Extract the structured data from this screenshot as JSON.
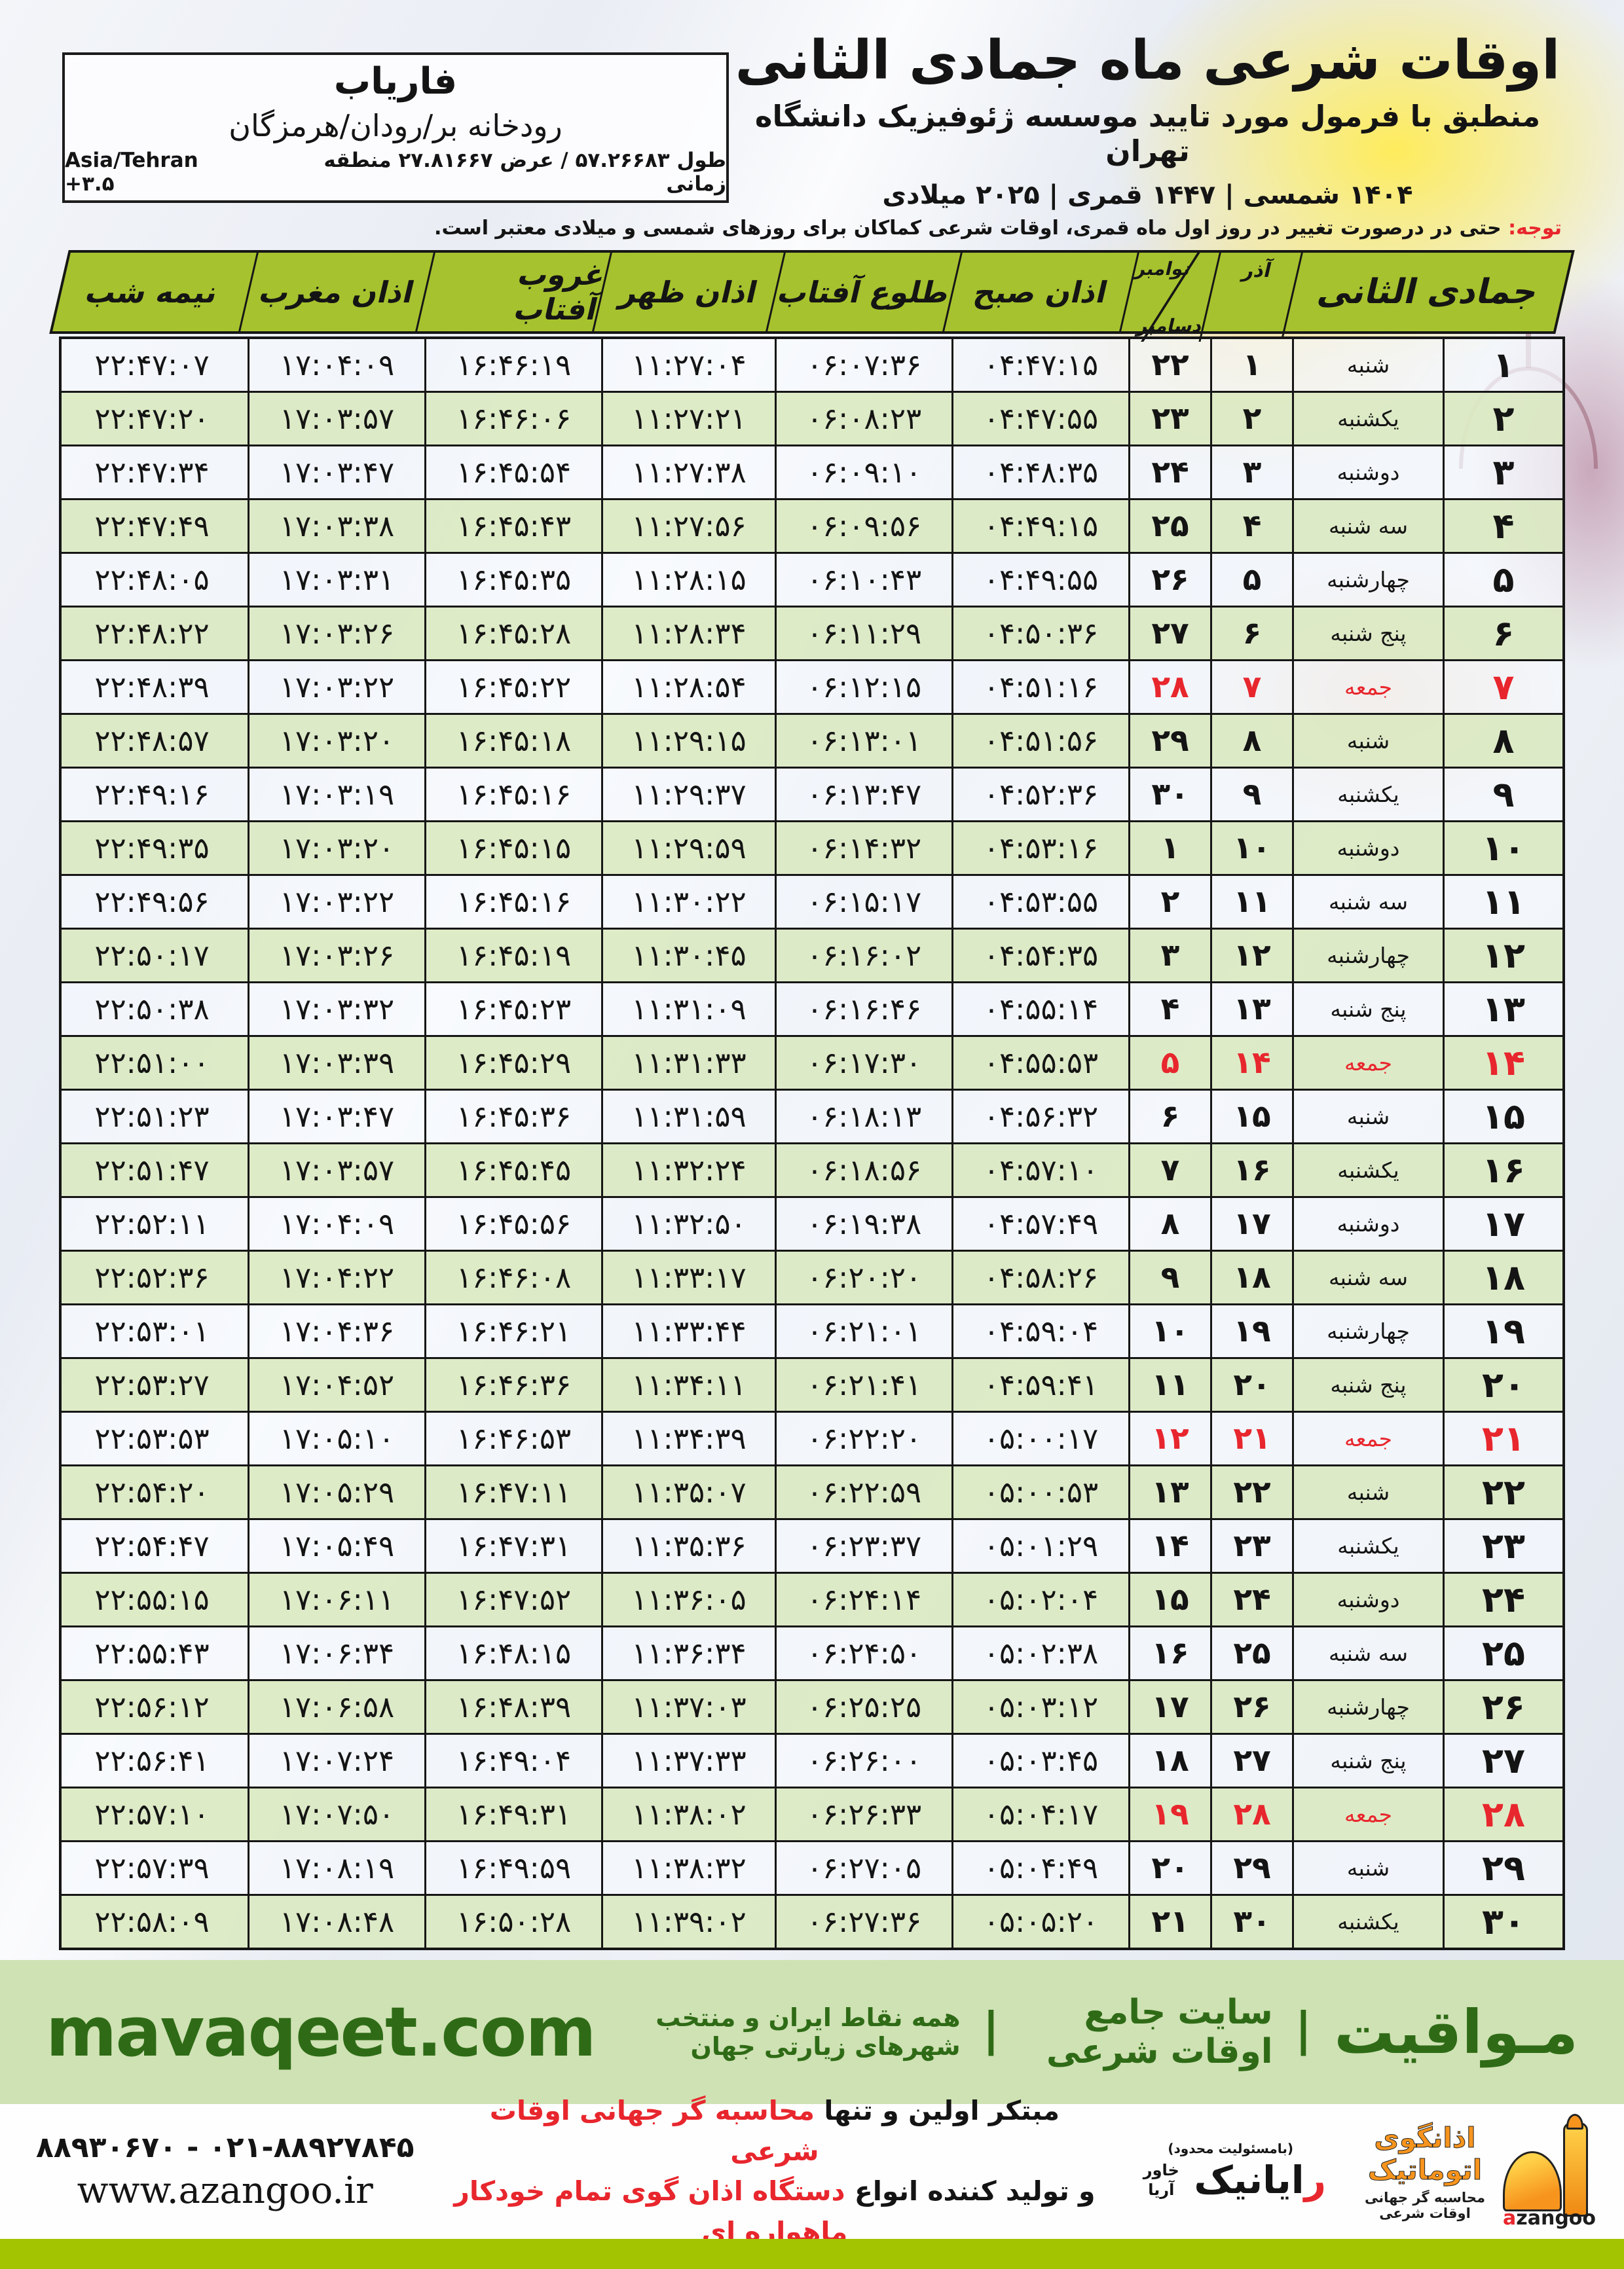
{
  "header": {
    "title": "اوقات شرعی ماه جمادی الثانی",
    "subtitle": "منطبق با فرمول مورد تایید موسسه ژئوفیزیک دانشگاه تهران",
    "dates": "۱۴۰۴ شمسی | ۱۴۴۷ قمری | ۲۰۲۵ میلادی"
  },
  "location": {
    "city": "فاریاب",
    "region": "رودخانه بر/رودان/هرمزگان",
    "coords_fa": "طول ۵۷.۲۶۶۸۳ / عرض ۲۷.۸۱۶۶۷ منطقه زمانی",
    "timezone": "Asia/Tehran +۳.۵"
  },
  "notice": {
    "label": "توجه:",
    "text": " حتی در درصورت تغییر در روز اول ماه قمری، اوقات شرعی کماکان برای روزهای شمسی و میلادی معتبر است."
  },
  "table": {
    "headers": {
      "month": "جمادی الثانی",
      "azar": "آذر",
      "november": "نوامبر",
      "december": "دسامبر",
      "sobh": "اذان صبح",
      "tolu": "طلوع آفتاب",
      "zohr": "اذان ظهر",
      "ghorub": "غروب آفتاب",
      "maghreb": "اذان مغرب",
      "nimeshab": "نیمه شب"
    },
    "rows": [
      {
        "day": "۱",
        "weekday": "شنبه",
        "azar": "۱",
        "novdec": "۲۲",
        "sobh": "۰۴:۴۷:۱۵",
        "tolu": "۰۶:۰۷:۳۶",
        "zohr": "۱۱:۲۷:۰۴",
        "ghorub": "۱۶:۴۶:۱۹",
        "maghreb": "۱۷:۰۴:۰۹",
        "nimeshab": "۲۲:۴۷:۰۷",
        "friday": false
      },
      {
        "day": "۲",
        "weekday": "یکشنبه",
        "azar": "۲",
        "novdec": "۲۳",
        "sobh": "۰۴:۴۷:۵۵",
        "tolu": "۰۶:۰۸:۲۳",
        "zohr": "۱۱:۲۷:۲۱",
        "ghorub": "۱۶:۴۶:۰۶",
        "maghreb": "۱۷:۰۳:۵۷",
        "nimeshab": "۲۲:۴۷:۲۰",
        "friday": false
      },
      {
        "day": "۳",
        "weekday": "دوشنبه",
        "azar": "۳",
        "novdec": "۲۴",
        "sobh": "۰۴:۴۸:۳۵",
        "tolu": "۰۶:۰۹:۱۰",
        "zohr": "۱۱:۲۷:۳۸",
        "ghorub": "۱۶:۴۵:۵۴",
        "maghreb": "۱۷:۰۳:۴۷",
        "nimeshab": "۲۲:۴۷:۳۴",
        "friday": false
      },
      {
        "day": "۴",
        "weekday": "سه شنبه",
        "azar": "۴",
        "novdec": "۲۵",
        "sobh": "۰۴:۴۹:۱۵",
        "tolu": "۰۶:۰۹:۵۶",
        "zohr": "۱۱:۲۷:۵۶",
        "ghorub": "۱۶:۴۵:۴۳",
        "maghreb": "۱۷:۰۳:۳۸",
        "nimeshab": "۲۲:۴۷:۴۹",
        "friday": false
      },
      {
        "day": "۵",
        "weekday": "چهارشنبه",
        "azar": "۵",
        "novdec": "۲۶",
        "sobh": "۰۴:۴۹:۵۵",
        "tolu": "۰۶:۱۰:۴۳",
        "zohr": "۱۱:۲۸:۱۵",
        "ghorub": "۱۶:۴۵:۳۵",
        "maghreb": "۱۷:۰۳:۳۱",
        "nimeshab": "۲۲:۴۸:۰۵",
        "friday": false
      },
      {
        "day": "۶",
        "weekday": "پنج شنبه",
        "azar": "۶",
        "novdec": "۲۷",
        "sobh": "۰۴:۵۰:۳۶",
        "tolu": "۰۶:۱۱:۲۹",
        "zohr": "۱۱:۲۸:۳۴",
        "ghorub": "۱۶:۴۵:۲۸",
        "maghreb": "۱۷:۰۳:۲۶",
        "nimeshab": "۲۲:۴۸:۲۲",
        "friday": false
      },
      {
        "day": "۷",
        "weekday": "جمعه",
        "azar": "۷",
        "novdec": "۲۸",
        "sobh": "۰۴:۵۱:۱۶",
        "tolu": "۰۶:۱۲:۱۵",
        "zohr": "۱۱:۲۸:۵۴",
        "ghorub": "۱۶:۴۵:۲۲",
        "maghreb": "۱۷:۰۳:۲۲",
        "nimeshab": "۲۲:۴۸:۳۹",
        "friday": true
      },
      {
        "day": "۸",
        "weekday": "شنبه",
        "azar": "۸",
        "novdec": "۲۹",
        "sobh": "۰۴:۵۱:۵۶",
        "tolu": "۰۶:۱۳:۰۱",
        "zohr": "۱۱:۲۹:۱۵",
        "ghorub": "۱۶:۴۵:۱۸",
        "maghreb": "۱۷:۰۳:۲۰",
        "nimeshab": "۲۲:۴۸:۵۷",
        "friday": false
      },
      {
        "day": "۹",
        "weekday": "یکشنبه",
        "azar": "۹",
        "novdec": "۳۰",
        "sobh": "۰۴:۵۲:۳۶",
        "tolu": "۰۶:۱۳:۴۷",
        "zohr": "۱۱:۲۹:۳۷",
        "ghorub": "۱۶:۴۵:۱۶",
        "maghreb": "۱۷:۰۳:۱۹",
        "nimeshab": "۲۲:۴۹:۱۶",
        "friday": false
      },
      {
        "day": "۱۰",
        "weekday": "دوشنبه",
        "azar": "۱۰",
        "novdec": "۱",
        "sobh": "۰۴:۵۳:۱۶",
        "tolu": "۰۶:۱۴:۳۲",
        "zohr": "۱۱:۲۹:۵۹",
        "ghorub": "۱۶:۴۵:۱۵",
        "maghreb": "۱۷:۰۳:۲۰",
        "nimeshab": "۲۲:۴۹:۳۵",
        "friday": false
      },
      {
        "day": "۱۱",
        "weekday": "سه شنبه",
        "azar": "۱۱",
        "novdec": "۲",
        "sobh": "۰۴:۵۳:۵۵",
        "tolu": "۰۶:۱۵:۱۷",
        "zohr": "۱۱:۳۰:۲۲",
        "ghorub": "۱۶:۴۵:۱۶",
        "maghreb": "۱۷:۰۳:۲۲",
        "nimeshab": "۲۲:۴۹:۵۶",
        "friday": false
      },
      {
        "day": "۱۲",
        "weekday": "چهارشنبه",
        "azar": "۱۲",
        "novdec": "۳",
        "sobh": "۰۴:۵۴:۳۵",
        "tolu": "۰۶:۱۶:۰۲",
        "zohr": "۱۱:۳۰:۴۵",
        "ghorub": "۱۶:۴۵:۱۹",
        "maghreb": "۱۷:۰۳:۲۶",
        "nimeshab": "۲۲:۵۰:۱۷",
        "friday": false
      },
      {
        "day": "۱۳",
        "weekday": "پنج شنبه",
        "azar": "۱۳",
        "novdec": "۴",
        "sobh": "۰۴:۵۵:۱۴",
        "tolu": "۰۶:۱۶:۴۶",
        "zohr": "۱۱:۳۱:۰۹",
        "ghorub": "۱۶:۴۵:۲۳",
        "maghreb": "۱۷:۰۳:۳۲",
        "nimeshab": "۲۲:۵۰:۳۸",
        "friday": false
      },
      {
        "day": "۱۴",
        "weekday": "جمعه",
        "azar": "۱۴",
        "novdec": "۵",
        "sobh": "۰۴:۵۵:۵۳",
        "tolu": "۰۶:۱۷:۳۰",
        "zohr": "۱۱:۳۱:۳۳",
        "ghorub": "۱۶:۴۵:۲۹",
        "maghreb": "۱۷:۰۳:۳۹",
        "nimeshab": "۲۲:۵۱:۰۰",
        "friday": true
      },
      {
        "day": "۱۵",
        "weekday": "شنبه",
        "azar": "۱۵",
        "novdec": "۶",
        "sobh": "۰۴:۵۶:۳۲",
        "tolu": "۰۶:۱۸:۱۳",
        "zohr": "۱۱:۳۱:۵۹",
        "ghorub": "۱۶:۴۵:۳۶",
        "maghreb": "۱۷:۰۳:۴۷",
        "nimeshab": "۲۲:۵۱:۲۳",
        "friday": false
      },
      {
        "day": "۱۶",
        "weekday": "یکشنبه",
        "azar": "۱۶",
        "novdec": "۷",
        "sobh": "۰۴:۵۷:۱۰",
        "tolu": "۰۶:۱۸:۵۶",
        "zohr": "۱۱:۳۲:۲۴",
        "ghorub": "۱۶:۴۵:۴۵",
        "maghreb": "۱۷:۰۳:۵۷",
        "nimeshab": "۲۲:۵۱:۴۷",
        "friday": false
      },
      {
        "day": "۱۷",
        "weekday": "دوشنبه",
        "azar": "۱۷",
        "novdec": "۸",
        "sobh": "۰۴:۵۷:۴۹",
        "tolu": "۰۶:۱۹:۳۸",
        "zohr": "۱۱:۳۲:۵۰",
        "ghorub": "۱۶:۴۵:۵۶",
        "maghreb": "۱۷:۰۴:۰۹",
        "nimeshab": "۲۲:۵۲:۱۱",
        "friday": false
      },
      {
        "day": "۱۸",
        "weekday": "سه شنبه",
        "azar": "۱۸",
        "novdec": "۹",
        "sobh": "۰۴:۵۸:۲۶",
        "tolu": "۰۶:۲۰:۲۰",
        "zohr": "۱۱:۳۳:۱۷",
        "ghorub": "۱۶:۴۶:۰۸",
        "maghreb": "۱۷:۰۴:۲۲",
        "nimeshab": "۲۲:۵۲:۳۶",
        "friday": false
      },
      {
        "day": "۱۹",
        "weekday": "چهارشنبه",
        "azar": "۱۹",
        "novdec": "۱۰",
        "sobh": "۰۴:۵۹:۰۴",
        "tolu": "۰۶:۲۱:۰۱",
        "zohr": "۱۱:۳۳:۴۴",
        "ghorub": "۱۶:۴۶:۲۱",
        "maghreb": "۱۷:۰۴:۳۶",
        "nimeshab": "۲۲:۵۳:۰۱",
        "friday": false
      },
      {
        "day": "۲۰",
        "weekday": "پنج شنبه",
        "azar": "۲۰",
        "novdec": "۱۱",
        "sobh": "۰۴:۵۹:۴۱",
        "tolu": "۰۶:۲۱:۴۱",
        "zohr": "۱۱:۳۴:۱۱",
        "ghorub": "۱۶:۴۶:۳۶",
        "maghreb": "۱۷:۰۴:۵۲",
        "nimeshab": "۲۲:۵۳:۲۷",
        "friday": false
      },
      {
        "day": "۲۱",
        "weekday": "جمعه",
        "azar": "۲۱",
        "novdec": "۱۲",
        "sobh": "۰۵:۰۰:۱۷",
        "tolu": "۰۶:۲۲:۲۰",
        "zohr": "۱۱:۳۴:۳۹",
        "ghorub": "۱۶:۴۶:۵۳",
        "maghreb": "۱۷:۰۵:۱۰",
        "nimeshab": "۲۲:۵۳:۵۳",
        "friday": true
      },
      {
        "day": "۲۲",
        "weekday": "شنبه",
        "azar": "۲۲",
        "novdec": "۱۳",
        "sobh": "۰۵:۰۰:۵۳",
        "tolu": "۰۶:۲۲:۵۹",
        "zohr": "۱۱:۳۵:۰۷",
        "ghorub": "۱۶:۴۷:۱۱",
        "maghreb": "۱۷:۰۵:۲۹",
        "nimeshab": "۲۲:۵۴:۲۰",
        "friday": false
      },
      {
        "day": "۲۳",
        "weekday": "یکشنبه",
        "azar": "۲۳",
        "novdec": "۱۴",
        "sobh": "۰۵:۰۱:۲۹",
        "tolu": "۰۶:۲۳:۳۷",
        "zohr": "۱۱:۳۵:۳۶",
        "ghorub": "۱۶:۴۷:۳۱",
        "maghreb": "۱۷:۰۵:۴۹",
        "nimeshab": "۲۲:۵۴:۴۷",
        "friday": false
      },
      {
        "day": "۲۴",
        "weekday": "دوشنبه",
        "azar": "۲۴",
        "novdec": "۱۵",
        "sobh": "۰۵:۰۲:۰۴",
        "tolu": "۰۶:۲۴:۱۴",
        "zohr": "۱۱:۳۶:۰۵",
        "ghorub": "۱۶:۴۷:۵۲",
        "maghreb": "۱۷:۰۶:۱۱",
        "nimeshab": "۲۲:۵۵:۱۵",
        "friday": false
      },
      {
        "day": "۲۵",
        "weekday": "سه شنبه",
        "azar": "۲۵",
        "novdec": "۱۶",
        "sobh": "۰۵:۰۲:۳۸",
        "tolu": "۰۶:۲۴:۵۰",
        "zohr": "۱۱:۳۶:۳۴",
        "ghorub": "۱۶:۴۸:۱۵",
        "maghreb": "۱۷:۰۶:۳۴",
        "nimeshab": "۲۲:۵۵:۴۳",
        "friday": false
      },
      {
        "day": "۲۶",
        "weekday": "چهارشنبه",
        "azar": "۲۶",
        "novdec": "۱۷",
        "sobh": "۰۵:۰۳:۱۲",
        "tolu": "۰۶:۲۵:۲۵",
        "zohr": "۱۱:۳۷:۰۳",
        "ghorub": "۱۶:۴۸:۳۹",
        "maghreb": "۱۷:۰۶:۵۸",
        "nimeshab": "۲۲:۵۶:۱۲",
        "friday": false
      },
      {
        "day": "۲۷",
        "weekday": "پنج شنبه",
        "azar": "۲۷",
        "novdec": "۱۸",
        "sobh": "۰۵:۰۳:۴۵",
        "tolu": "۰۶:۲۶:۰۰",
        "zohr": "۱۱:۳۷:۳۳",
        "ghorub": "۱۶:۴۹:۰۴",
        "maghreb": "۱۷:۰۷:۲۴",
        "nimeshab": "۲۲:۵۶:۴۱",
        "friday": false
      },
      {
        "day": "۲۸",
        "weekday": "جمعه",
        "azar": "۲۸",
        "novdec": "۱۹",
        "sobh": "۰۵:۰۴:۱۷",
        "tolu": "۰۶:۲۶:۳۳",
        "zohr": "۱۱:۳۸:۰۲",
        "ghorub": "۱۶:۴۹:۳۱",
        "maghreb": "۱۷:۰۷:۵۰",
        "nimeshab": "۲۲:۵۷:۱۰",
        "friday": true
      },
      {
        "day": "۲۹",
        "weekday": "شنبه",
        "azar": "۲۹",
        "novdec": "۲۰",
        "sobh": "۰۵:۰۴:۴۹",
        "tolu": "۰۶:۲۷:۰۵",
        "zohr": "۱۱:۳۸:۳۲",
        "ghorub": "۱۶:۴۹:۵۹",
        "maghreb": "۱۷:۰۸:۱۹",
        "nimeshab": "۲۲:۵۷:۳۹",
        "friday": false
      },
      {
        "day": "۳۰",
        "weekday": "یکشنبه",
        "azar": "۳۰",
        "novdec": "۲۱",
        "sobh": "۰۵:۰۵:۲۰",
        "tolu": "۰۶:۲۷:۳۶",
        "zohr": "۱۱:۳۹:۰۲",
        "ghorub": "۱۶:۵۰:۲۸",
        "maghreb": "۱۷:۰۸:۴۸",
        "nimeshab": "۲۲:۵۸:۰۹",
        "friday": false
      }
    ]
  },
  "footer": {
    "mavaqeet": {
      "brand_fa": "مـواقیت",
      "sep": "|",
      "tagline1": "سایت جامع اوقات شرعی",
      "tagline2": "همه نقاط ایران و منتخب شهرهای زیارتی جهان",
      "domain": "mavaqeet.com"
    },
    "producer": {
      "line1_black": "مبتکر اولین و تنها ",
      "line1_red": "محاسبه گر جهانی اوقات شرعی",
      "line2_black": "و تولید کننده انواع ",
      "line2_red": "دستگاه اذان گوی تمام خودکار ماهواره ای"
    },
    "rayanik": {
      "note": "(بامسئولیت محدود)",
      "name_first_letter": "ر",
      "name_rest": "ایانیک",
      "sub": "خاور آریا"
    },
    "azangoo": {
      "name_fa": "اذانگوی اتوماتیک",
      "sub_fa": "محاسبه گر جهانی اوقات شرعی",
      "en_first": "a",
      "en_rest": "zangoo"
    },
    "contact": {
      "phone": "۰۲۱-۸۸۹۲۷۸۴۵ - ۸۸۹۳۰۶۷۰",
      "website": "www.azangoo.ir"
    }
  },
  "colors": {
    "header_green": "#a6c22e",
    "row_green": "#dbeac3",
    "friday_red": "#e8262d",
    "brand_green": "#2f6b16",
    "bar_light_green": "#cfe2b4",
    "bottom_bar_green": "#a3c400",
    "azangoo_orange": "#f7941d"
  }
}
